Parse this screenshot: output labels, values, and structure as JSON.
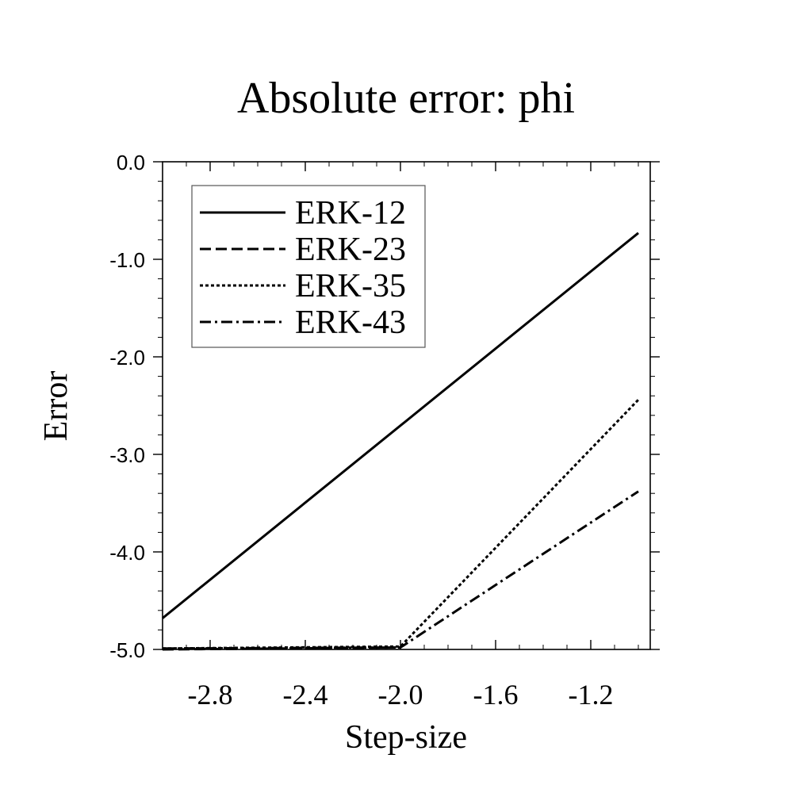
{
  "chart_data": {
    "type": "line",
    "title": "Absolute error: phi",
    "xlabel": "Step-size",
    "ylabel": "Error",
    "xlim": [
      -3.0,
      -0.95
    ],
    "ylim": [
      -5.0,
      0.0
    ],
    "x_ticks": [
      -2.8,
      -2.4,
      -2.0,
      -1.6,
      -1.2
    ],
    "x_tick_labels": [
      "-2.8",
      "-2.4",
      "-2.0",
      "-1.6",
      "-1.2"
    ],
    "y_ticks": [
      0.0,
      -1.0,
      -2.0,
      -3.0,
      -4.0,
      -5.0
    ],
    "y_tick_labels": [
      "0.0",
      "-1.0",
      "-2.0",
      "-3.0",
      "-4.0",
      "-5.0"
    ],
    "grid": false,
    "legend_position": "top-left",
    "series": [
      {
        "name": "ERK-12",
        "style": "solid",
        "x": [
          -3.0,
          -1.0
        ],
        "y": [
          -4.68,
          -0.73
        ]
      },
      {
        "name": "ERK-23",
        "style": "dashed",
        "x": [
          -3.0,
          -2.0
        ],
        "y": [
          -5.0,
          -4.98
        ]
      },
      {
        "name": "ERK-35",
        "style": "dotted",
        "x": [
          -3.0,
          -2.0,
          -1.0
        ],
        "y": [
          -4.99,
          -4.97,
          -2.44
        ]
      },
      {
        "name": "ERK-43",
        "style": "dashdot",
        "x": [
          -3.0,
          -2.0,
          -1.0
        ],
        "y": [
          -4.99,
          -4.98,
          -3.38
        ]
      }
    ]
  }
}
